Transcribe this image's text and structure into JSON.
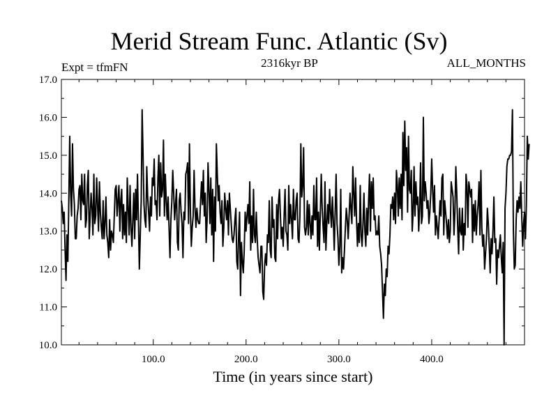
{
  "chart_data": {
    "type": "line",
    "title": "Merid Stream Func. Atlantic (Sv)",
    "subtitle": "2316kyr BP",
    "left_annotation": "Expt = tfmFN",
    "right_annotation": "ALL_MONTHS",
    "xlabel": "Time (in years since start)",
    "ylabel": "",
    "xlim": [
      1,
      500
    ],
    "ylim": [
      10.0,
      17.0
    ],
    "xticks": [
      100,
      200,
      300,
      400
    ],
    "xtick_labels": [
      "100.0",
      "200.0",
      "300.0",
      "400.0"
    ],
    "yticks": [
      10,
      11,
      12,
      13,
      14,
      15,
      16,
      17
    ],
    "ytick_labels": [
      "10.0",
      "11.0",
      "12.0",
      "13.0",
      "14.0",
      "15.0",
      "16.0",
      "17.0"
    ],
    "grid": false,
    "line_color": "#000000",
    "series": [
      {
        "name": "Merid Stream Func. Atlantic",
        "x_start": 1,
        "x_step": 1,
        "values": [
          13.8,
          13.6,
          13.2,
          13.5,
          12.5,
          11.7,
          12.9,
          12.2,
          13.8,
          15.5,
          14.0,
          13.4,
          15.3,
          14.1,
          13.7,
          12.8,
          12.8,
          13.4,
          13.6,
          14.1,
          14.2,
          13.3,
          14.5,
          13.8,
          13.7,
          14.5,
          13.1,
          13.3,
          14.2,
          14.6,
          12.8,
          13.4,
          14.0,
          13.6,
          12.9,
          14.5,
          13.2,
          13.4,
          14.4,
          13.7,
          13.0,
          14.3,
          13.5,
          13.1,
          12.8,
          13.8,
          12.8,
          13.2,
          13.9,
          12.9,
          12.7,
          12.3,
          13.3,
          12.5,
          13.0,
          12.9,
          12.7,
          13.4,
          14.1,
          14.2,
          13.4,
          13.8,
          14.2,
          13.0,
          13.8,
          14.1,
          12.8,
          13.7,
          12.9,
          13.5,
          12.7,
          14.4,
          13.6,
          12.9,
          14.2,
          13.1,
          12.6,
          13.3,
          14.0,
          12.8,
          14.1,
          13.3,
          14.5,
          13.3,
          12.0,
          12.9,
          13.8,
          16.2,
          15.0,
          13.7,
          13.3,
          13.1,
          14.7,
          13.9,
          13.5,
          13.0,
          13.9,
          13.4,
          14.4,
          14.2,
          14.9,
          13.7,
          13.8,
          13.3,
          14.4,
          15.0,
          13.4,
          14.8,
          13.9,
          14.1,
          15.4,
          13.4,
          14.5,
          13.8,
          13.3,
          13.9,
          13.1,
          12.3,
          13.3,
          13.8,
          14.6,
          14.0,
          13.3,
          13.7,
          14.1,
          12.7,
          12.5,
          13.8,
          14.0,
          13.5,
          13.2,
          12.3,
          13.5,
          13.3,
          14.5,
          14.6,
          14.8,
          13.2,
          15.3,
          13.6,
          12.6,
          13.1,
          13.4,
          14.6,
          13.6,
          13.1,
          13.6,
          13.3,
          13.2,
          13.2,
          13.8,
          14.3,
          13.7,
          14.6,
          13.4,
          14.0,
          12.7,
          13.3,
          14.8,
          14.1,
          13.2,
          14.4,
          12.9,
          14.1,
          12.2,
          13.9,
          13.0,
          15.3,
          14.5,
          13.8,
          14.2,
          13.5,
          13.2,
          13.8,
          12.6,
          13.1,
          14.0,
          13.6,
          13.3,
          13.8,
          12.9,
          14.0,
          13.6,
          13.2,
          12.8,
          12.7,
          12.9,
          13.3,
          13.6,
          12.2,
          12.0,
          12.9,
          13.5,
          11.3,
          12.7,
          12.2,
          11.9,
          12.5,
          13.5,
          13.0,
          13.4,
          13.7,
          13.2,
          14.3,
          12.5,
          13.4,
          12.7,
          14.1,
          12.9,
          12.7,
          13.5,
          12.8,
          12.3,
          12.1,
          11.9,
          12.6,
          12.6,
          11.4,
          11.2,
          12.1,
          12.4,
          12.1,
          12.9,
          12.7,
          13.8,
          12.5,
          12.3,
          13.9,
          13.1,
          13.3,
          12.3,
          12.2,
          13.7,
          12.8,
          13.8,
          14.1,
          13.4,
          12.8,
          13.1,
          12.6,
          13.4,
          14.1,
          13.0,
          12.9,
          12.5,
          14.2,
          13.2,
          13.7,
          13.3,
          12.8,
          14.1,
          13.3,
          13.3,
          13.8,
          14.0,
          12.8,
          12.7,
          13.4,
          15.3,
          13.9,
          14.2,
          15.2,
          13.1,
          12.9,
          13.1,
          13.8,
          12.9,
          13.7,
          13.2,
          12.8,
          13.4,
          12.9,
          14.2,
          13.3,
          13.3,
          14.4,
          12.6,
          13.5,
          12.5,
          13.5,
          14.5,
          13.6,
          13.1,
          12.7,
          14.3,
          12.5,
          13.2,
          13.7,
          13.2,
          14.1,
          13.5,
          13.1,
          13.9,
          13.3,
          12.5,
          13.5,
          14.5,
          13.2,
          12.8,
          12.1,
          12.6,
          14.1,
          11.9,
          12.3,
          12.0,
          12.5,
          13.1,
          13.6,
          13.3,
          12.8,
          13.4,
          14.0,
          13.6,
          13.2,
          14.7,
          14.0,
          13.4,
          14.4,
          13.3,
          12.6,
          13.2,
          12.7,
          14.2,
          12.9,
          12.6,
          13.2,
          14.0,
          13.0,
          12.6,
          13.6,
          12.9,
          13.8,
          14.5,
          13.0,
          14.3,
          13.6,
          14.4,
          13.3,
          13.4,
          12.9,
          13.0,
          12.9,
          13.4,
          12.6,
          12.4,
          12.1,
          11.4,
          10.7,
          11.6,
          11.3,
          12.0,
          11.8,
          12.6,
          12.4,
          12.9,
          13.7,
          13.6,
          13.9,
          13.3,
          14.0,
          13.2,
          14.6,
          14.2,
          13.4,
          14.4,
          13.6,
          14.5,
          13.3,
          15.6,
          14.2,
          15.9,
          14.6,
          15.2,
          13.5,
          15.5,
          14.1,
          14.0,
          14.6,
          13.0,
          13.5,
          14.7,
          13.4,
          14.3,
          13.7,
          13.9,
          13.0,
          13.6,
          14.8,
          13.2,
          13.4,
          16.0,
          13.8,
          14.3,
          14.0,
          13.6,
          13.8,
          13.2,
          13.5,
          14.0,
          14.9,
          14.1,
          13.5,
          14.2,
          12.9,
          13.4,
          13.1,
          12.8,
          13.3,
          13.8,
          13.4,
          14.4,
          14.5,
          12.9,
          13.8,
          13.5,
          13.2,
          12.8,
          13.3,
          12.7,
          13.0,
          14.3,
          14.1,
          13.9,
          12.9,
          13.5,
          14.7,
          14.0,
          13.1,
          12.4,
          13.6,
          13.0,
          12.9,
          13.6,
          12.5,
          13.2,
          12.9,
          14.5,
          14.2,
          13.1,
          14.3,
          14.1,
          13.9,
          14.1,
          12.7,
          13.7,
          13.0,
          13.8,
          12.9,
          13.4,
          13.7,
          14.3,
          12.9,
          14.6,
          13.1,
          12.6,
          12.9,
          12.0,
          12.4,
          12.8,
          13.6,
          13.2,
          12.6,
          11.9,
          12.8,
          12.4,
          13.0,
          13.9,
          12.7,
          12.8,
          11.6,
          12.5,
          12.3,
          12.6,
          12.9,
          12.3,
          11.9,
          12.7,
          10.0,
          13.6,
          14.0,
          14.7,
          14.9,
          14.9,
          15.0,
          15.0,
          15.1,
          16.2,
          13.0,
          12.0,
          12.1,
          13.3,
          13.8,
          13.5,
          13.9,
          13.6,
          14.3,
          13.4,
          12.6,
          13.2,
          13.5,
          12.8,
          13.7,
          15.5,
          14.9,
          15.3
        ]
      }
    ]
  }
}
